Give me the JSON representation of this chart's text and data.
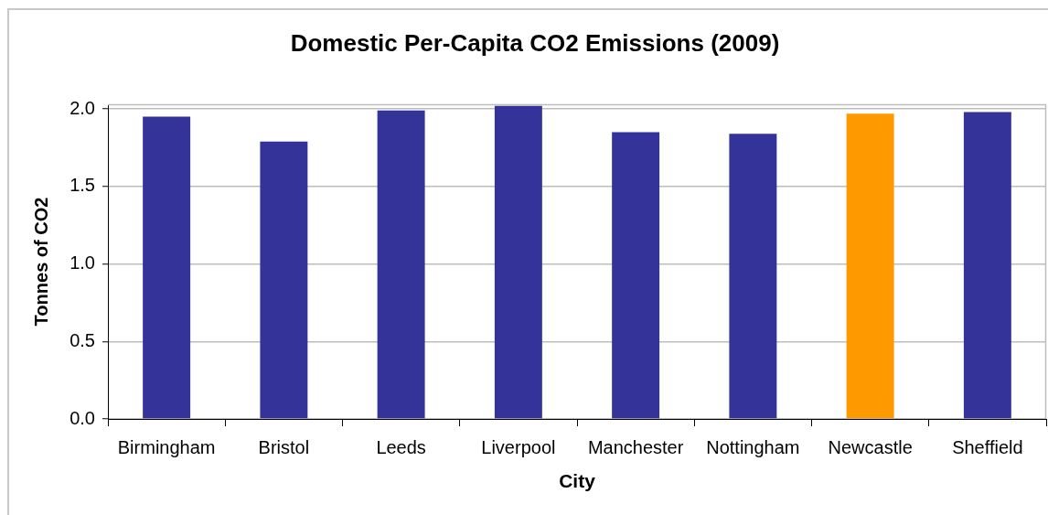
{
  "chart_data": {
    "type": "bar",
    "title": "Domestic Per-Capita CO2 Emissions (2009)",
    "xlabel": "City",
    "ylabel": "Tonnes of CO2",
    "categories": [
      "Birmingham",
      "Bristol",
      "Leeds",
      "Liverpool",
      "Manchester",
      "Nottingham",
      "Newcastle",
      "Sheffield"
    ],
    "values": [
      1.95,
      1.79,
      1.99,
      2.02,
      1.85,
      1.84,
      1.97,
      1.98
    ],
    "colors": [
      "#333399",
      "#333399",
      "#333399",
      "#333399",
      "#333399",
      "#333399",
      "#ff9900",
      "#333399"
    ],
    "ylim": [
      0,
      2.03
    ],
    "yticks": [
      {
        "value": 0,
        "label": "0.0"
      },
      0.5,
      {
        "value": 1,
        "label": "1.0"
      },
      1.5,
      {
        "value": 2,
        "label": "2.0"
      }
    ],
    "grid": "y"
  }
}
